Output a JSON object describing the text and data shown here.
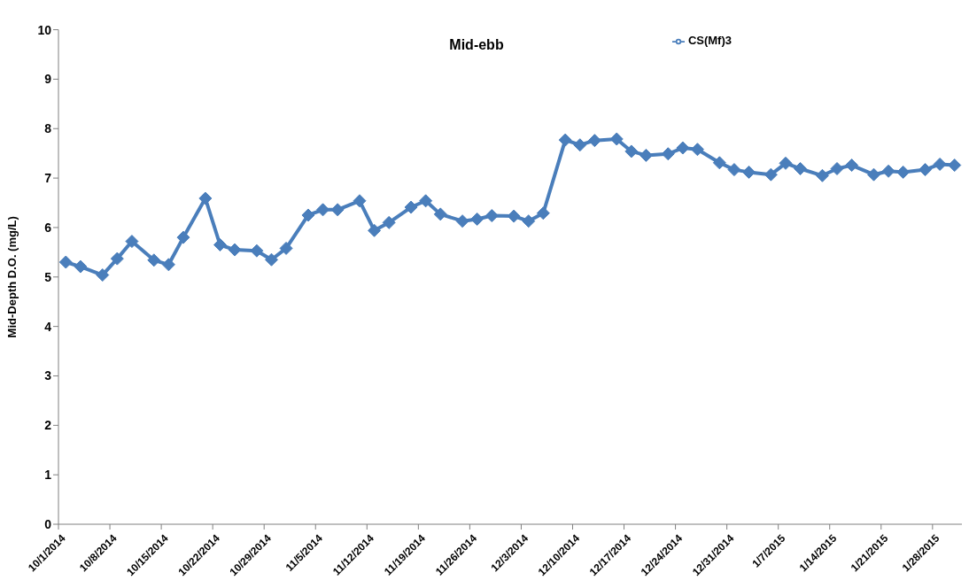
{
  "chart_data": {
    "type": "line",
    "title": "Mid-ebb",
    "ylabel": "Mid-Depth D.O. (mg/L)",
    "x": [
      "2014-10-02",
      "2014-10-04",
      "2014-10-07",
      "2014-10-09",
      "2014-10-11",
      "2014-10-14",
      "2014-10-16",
      "2014-10-18",
      "2014-10-21",
      "2014-10-23",
      "2014-10-25",
      "2014-10-28",
      "2014-10-30",
      "2014-11-01",
      "2014-11-04",
      "2014-11-06",
      "2014-11-08",
      "2014-11-11",
      "2014-11-13",
      "2014-11-15",
      "2014-11-18",
      "2014-11-20",
      "2014-11-22",
      "2014-11-25",
      "2014-11-27",
      "2014-11-29",
      "2014-12-02",
      "2014-12-04",
      "2014-12-06",
      "2014-12-09",
      "2014-12-11",
      "2014-12-13",
      "2014-12-16",
      "2014-12-18",
      "2014-12-20",
      "2014-12-23",
      "2014-12-25",
      "2014-12-27",
      "2014-12-30",
      "2015-01-01",
      "2015-01-03",
      "2015-01-06",
      "2015-01-08",
      "2015-01-10",
      "2015-01-13",
      "2015-01-15",
      "2015-01-17",
      "2015-01-20",
      "2015-01-22",
      "2015-01-24",
      "2015-01-27",
      "2015-01-29",
      "2015-01-31"
    ],
    "series": [
      {
        "name": "CS(Mf)3",
        "color": "#4a7ebb",
        "values": [
          5.3,
          5.21,
          5.04,
          5.37,
          5.72,
          5.34,
          5.25,
          5.8,
          6.59,
          5.65,
          5.55,
          5.53,
          5.35,
          5.58,
          6.25,
          6.36,
          6.36,
          6.54,
          5.94,
          6.1,
          6.41,
          6.54,
          6.27,
          6.13,
          6.17,
          6.24,
          6.23,
          6.13,
          6.29,
          7.77,
          7.67,
          7.76,
          7.79,
          7.54,
          7.46,
          7.49,
          7.61,
          7.58,
          7.31,
          7.17,
          7.12,
          7.07,
          7.3,
          7.19,
          7.05,
          7.19,
          7.26,
          7.07,
          7.14,
          7.12,
          7.17,
          7.28,
          7.26
        ]
      }
    ],
    "xlim": [
      "2014-10-01",
      "2015-02-01"
    ],
    "xticks": [
      {
        "value": "2014-10-01",
        "label": "10/1/2014"
      },
      {
        "value": "2014-10-08",
        "label": "10/8/2014"
      },
      {
        "value": "2014-10-15",
        "label": "10/15/2014"
      },
      {
        "value": "2014-10-22",
        "label": "10/22/2014"
      },
      {
        "value": "2014-10-29",
        "label": "10/29/2014"
      },
      {
        "value": "2014-11-05",
        "label": "11/5/2014"
      },
      {
        "value": "2014-11-12",
        "label": "11/12/2014"
      },
      {
        "value": "2014-11-19",
        "label": "11/19/2014"
      },
      {
        "value": "2014-11-26",
        "label": "11/26/2014"
      },
      {
        "value": "2014-12-03",
        "label": "12/3/2014"
      },
      {
        "value": "2014-12-10",
        "label": "12/10/2014"
      },
      {
        "value": "2014-12-17",
        "label": "12/17/2014"
      },
      {
        "value": "2014-12-24",
        "label": "12/24/2014"
      },
      {
        "value": "2014-12-31",
        "label": "12/31/2014"
      },
      {
        "value": "2015-01-07",
        "label": "1/7/2015"
      },
      {
        "value": "2015-01-14",
        "label": "1/14/2015"
      },
      {
        "value": "2015-01-21",
        "label": "1/21/2015"
      },
      {
        "value": "2015-01-28",
        "label": "1/28/2015"
      }
    ],
    "ylim": [
      0,
      10
    ],
    "yticks": [
      0,
      1,
      2,
      3,
      4,
      5,
      6,
      7,
      8,
      9,
      10
    ],
    "grid": false,
    "legend": "top right",
    "marker": "diamond",
    "line_style": "solid"
  }
}
